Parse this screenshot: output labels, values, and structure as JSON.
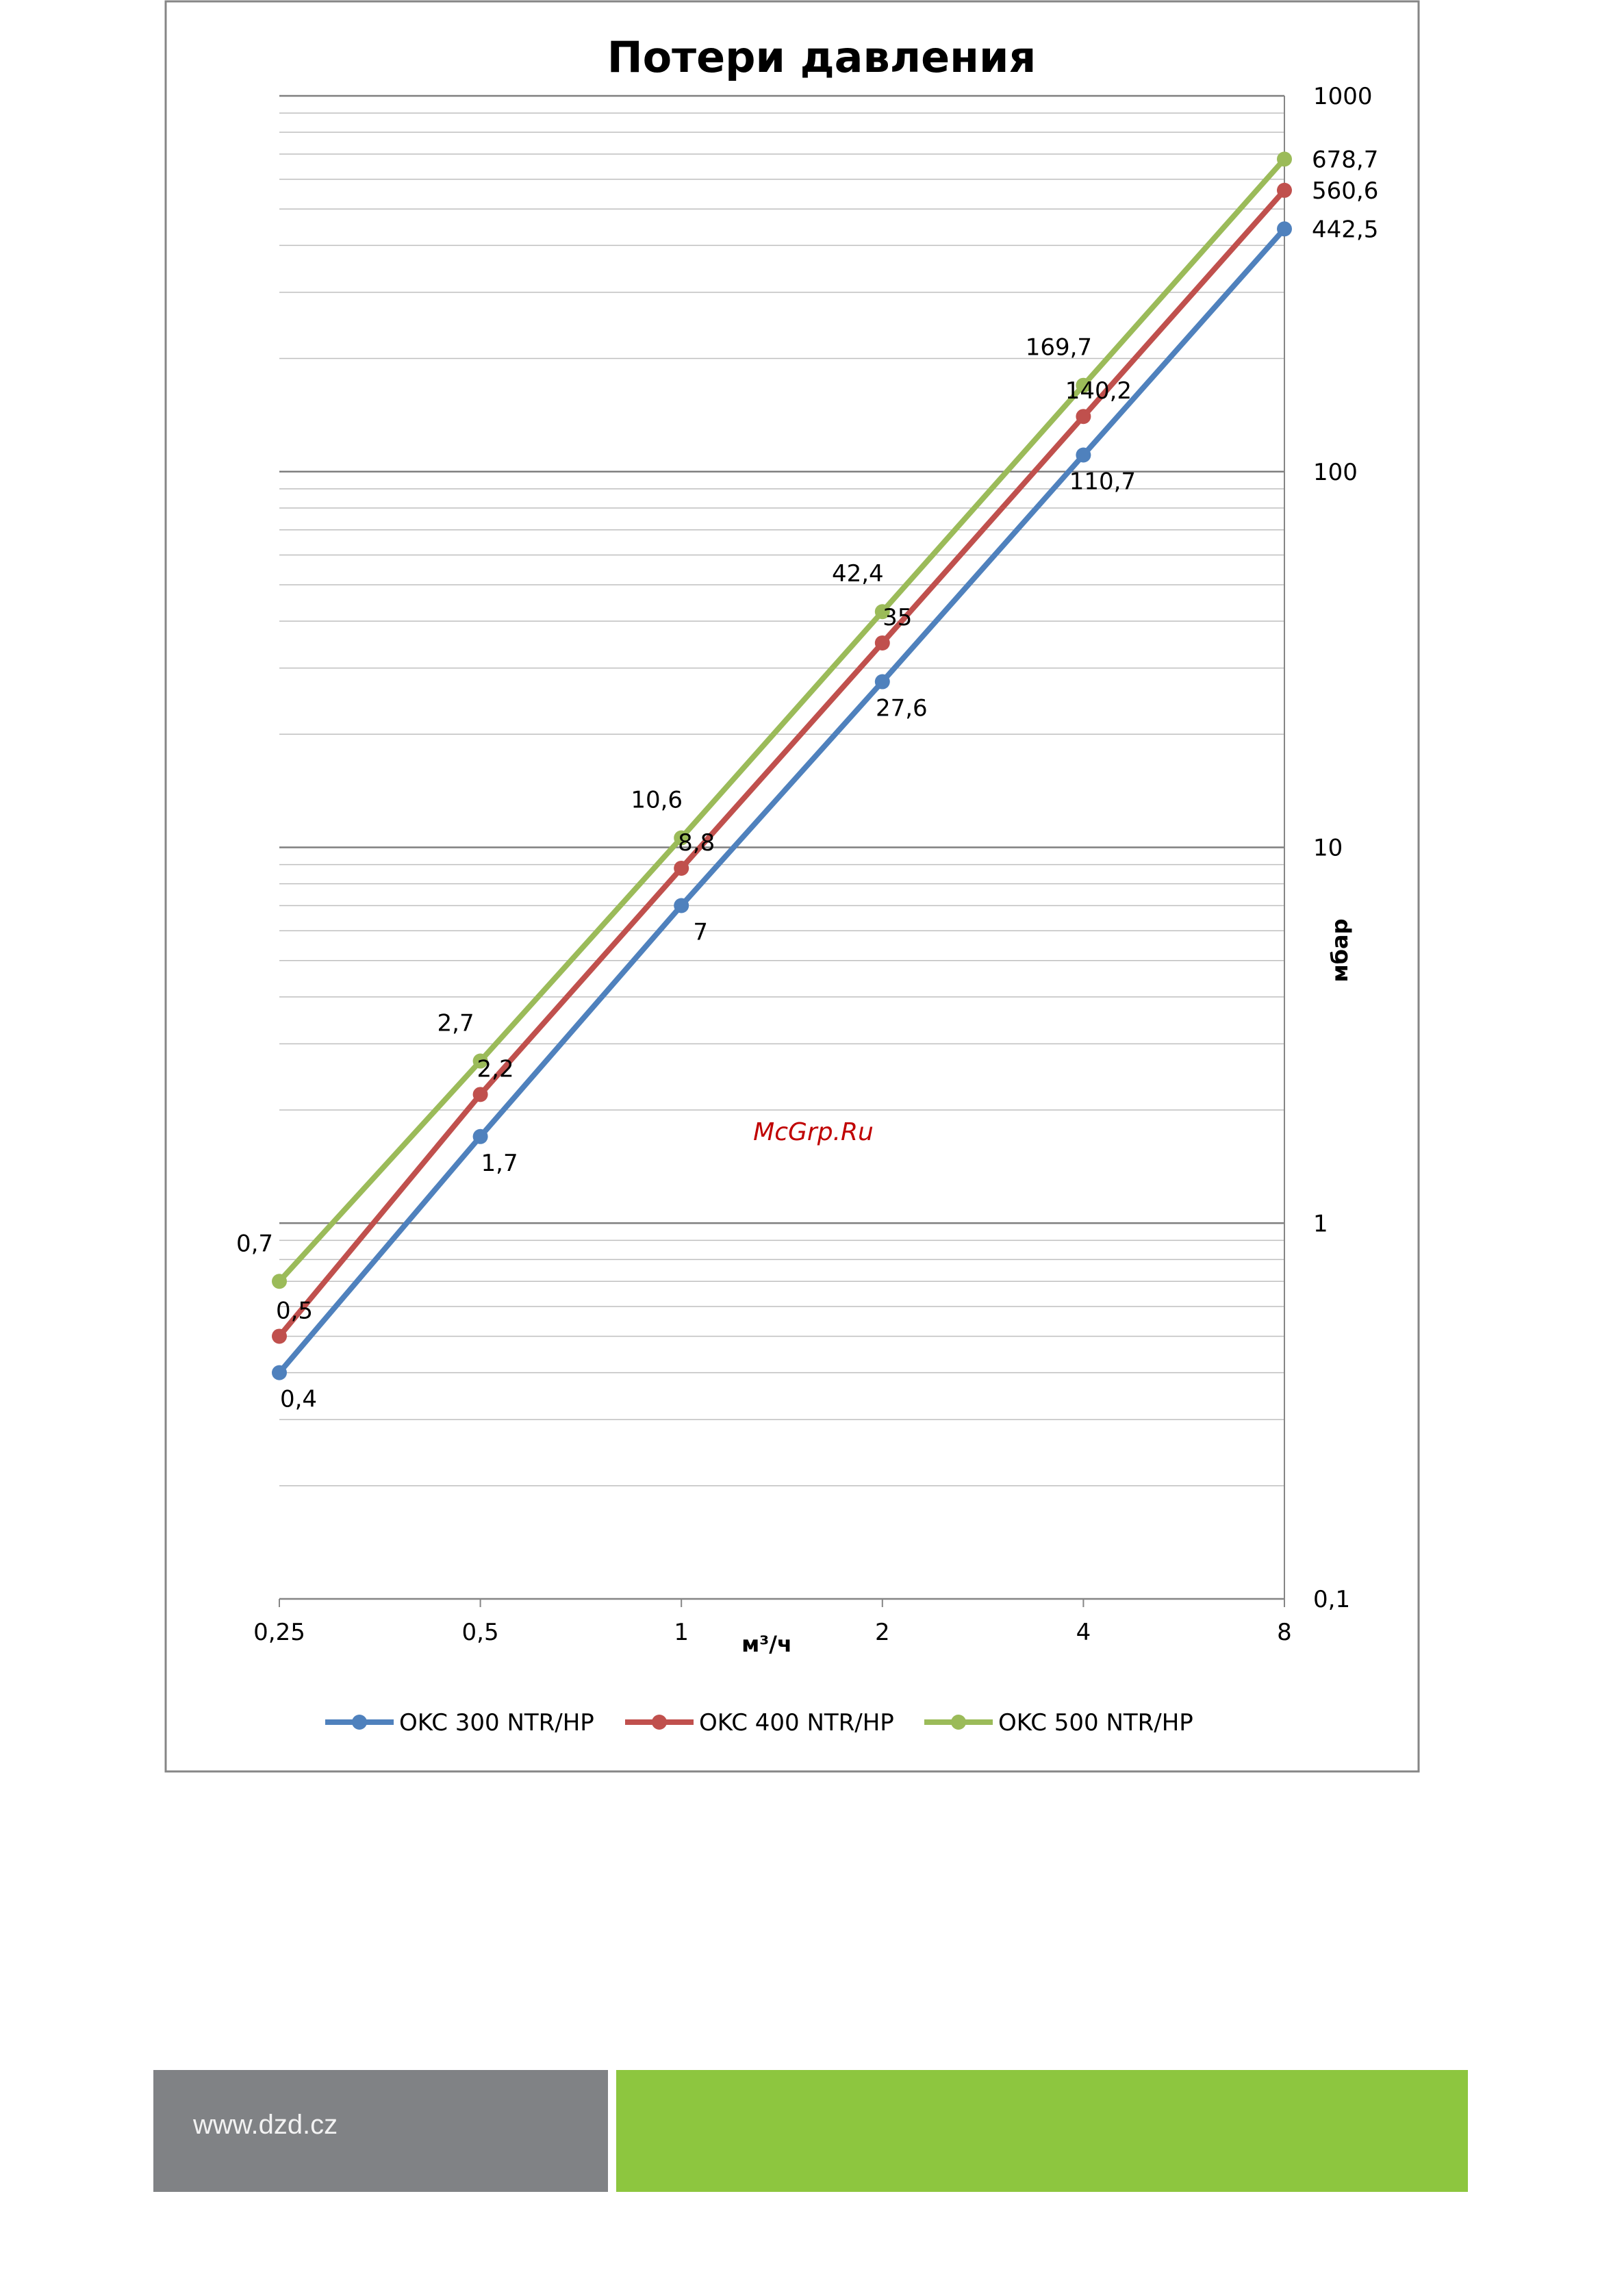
{
  "chart_data": {
    "type": "line",
    "title": "Потери давления",
    "xlabel": "м³/ч",
    "ylabel": "мбар",
    "x_scale": "log2",
    "y_scale": "log10",
    "categories": [
      "0,25",
      "0,5",
      "1",
      "2",
      "4",
      "8"
    ],
    "x": [
      0.25,
      0.5,
      1,
      2,
      4,
      8
    ],
    "ylim": [
      0.1,
      1000
    ],
    "yticks": [
      "0,1",
      "1",
      "10",
      "100",
      "1000"
    ],
    "grid": true,
    "legend_position": "bottom",
    "watermark": "McGrp.Ru",
    "series": [
      {
        "name": "OKC 300 NTR/HP",
        "color": "#4f81bd",
        "values": [
          0.4,
          1.7,
          7,
          27.6,
          110.7,
          442.5
        ],
        "labels": [
          "0,4",
          "1,7",
          "7",
          "27,6",
          "110,7",
          "442,5"
        ]
      },
      {
        "name": "OKC 400 NTR/HP",
        "color": "#c0504d",
        "values": [
          0.5,
          2.2,
          8.8,
          35,
          140.2,
          560.6
        ],
        "labels": [
          "0,5",
          "2,2",
          "8,8",
          "35",
          "140,2",
          "560,6"
        ]
      },
      {
        "name": "OKC 500 NTR/HP",
        "color": "#9bbb59",
        "values": [
          0.7,
          2.7,
          10.6,
          42.4,
          169.7,
          678.7
        ],
        "labels": [
          "0,7",
          "2,7",
          "10,6",
          "42,4",
          "169,7",
          "678,7"
        ]
      }
    ]
  },
  "footer": {
    "url": "www.dzd.cz",
    "left_color": "#808285",
    "right_color": "#8dc63f"
  }
}
